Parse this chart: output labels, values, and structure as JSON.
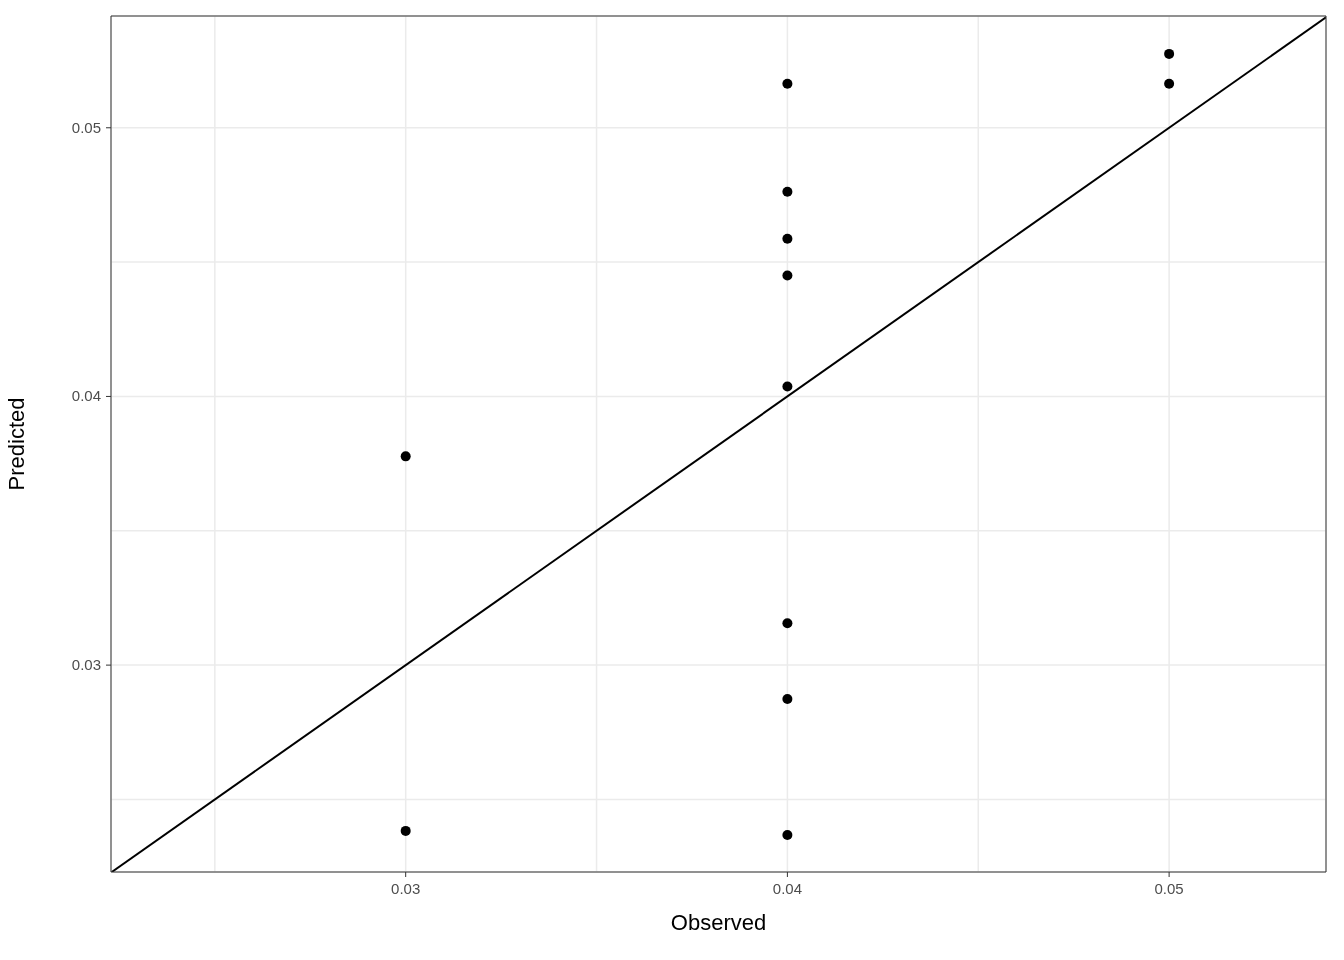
{
  "chart_data": {
    "type": "scatter",
    "xlabel": "Observed",
    "ylabel": "Predicted",
    "xlim": [
      0.02228,
      0.05411
    ],
    "ylim": [
      0.0223,
      0.05416
    ],
    "xticks": [
      {
        "value": 0.025,
        "label": null
      },
      0.03,
      {
        "value": 0.035,
        "label": null
      },
      0.04,
      {
        "value": 0.045,
        "label": null
      },
      0.05
    ],
    "yticks": [
      {
        "value": 0.025,
        "label": null
      },
      0.03,
      {
        "value": 0.035,
        "label": null
      },
      0.04,
      {
        "value": 0.045,
        "label": null
      },
      0.05
    ],
    "grid": true,
    "series": [
      {
        "marker": "circle",
        "color": "#000000",
        "x": [
          0.05,
          0.05,
          0.04,
          0.04,
          0.04,
          0.04,
          0.04,
          0.03,
          0.04,
          0.04,
          0.03,
          0.04
        ],
        "values": [
          0.05275,
          0.05164,
          0.05164,
          0.04762,
          0.04587,
          0.0445,
          0.04037,
          0.03777,
          0.03156,
          0.02874,
          0.02383,
          0.02368
        ]
      },
      {
        "type": "line",
        "color": "#000000",
        "x": [
          0.0223,
          0.05411
        ],
        "values": [
          0.0223,
          0.05411
        ]
      }
    ]
  }
}
